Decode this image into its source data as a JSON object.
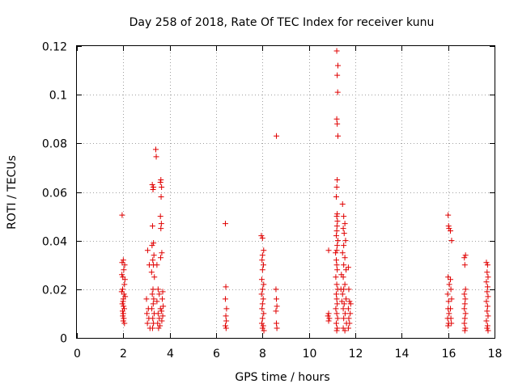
{
  "chart_data": {
    "type": "scatter",
    "title": "Day 258 of 2018, Rate Of TEC Index for receiver kunu",
    "xlabel": "GPS time / hours",
    "ylabel": "ROTI / TECUs",
    "xlim": [
      0,
      18
    ],
    "ylim": [
      0,
      0.12
    ],
    "xticks": [
      0,
      2,
      4,
      6,
      8,
      10,
      12,
      14,
      16,
      18
    ],
    "yticks": [
      0,
      0.02,
      0.04,
      0.06,
      0.08,
      0.1,
      0.12
    ],
    "xtick_labels": [
      "0",
      "2",
      "4",
      "6",
      "8",
      "10",
      "12",
      "14",
      "16",
      "18"
    ],
    "ytick_labels": [
      "0",
      "0.02",
      "0.04",
      "0.06",
      "0.08",
      "0.1",
      "0.12"
    ],
    "grid": true,
    "marker": "+",
    "color": "#e00000",
    "series": [
      {
        "name": "ROTI",
        "points": [
          [
            1.95,
            0.0505
          ],
          [
            2.0,
            0.032
          ],
          [
            2.02,
            0.028
          ],
          [
            1.98,
            0.025
          ],
          [
            2.05,
            0.022
          ],
          [
            1.97,
            0.02
          ],
          [
            2.03,
            0.018
          ],
          [
            2.0,
            0.016
          ],
          [
            1.96,
            0.014
          ],
          [
            2.04,
            0.012
          ],
          [
            2.0,
            0.01
          ],
          [
            1.98,
            0.009
          ],
          [
            2.02,
            0.008
          ],
          [
            2.0,
            0.007
          ],
          [
            1.95,
            0.031
          ],
          [
            2.06,
            0.03
          ],
          [
            1.94,
            0.026
          ],
          [
            2.07,
            0.024
          ],
          [
            1.93,
            0.019
          ],
          [
            2.08,
            0.017
          ],
          [
            1.99,
            0.015
          ],
          [
            2.01,
            0.013
          ],
          [
            1.97,
            0.011
          ],
          [
            2.05,
            0.006
          ],
          [
            3.05,
            0.036
          ],
          [
            3.12,
            0.03
          ],
          [
            3.0,
            0.016
          ],
          [
            3.08,
            0.012
          ],
          [
            3.02,
            0.01
          ],
          [
            3.1,
            0.008
          ],
          [
            3.04,
            0.006
          ],
          [
            3.15,
            0.004
          ],
          [
            3.25,
            0.063
          ],
          [
            3.3,
            0.062
          ],
          [
            3.28,
            0.061
          ],
          [
            3.26,
            0.046
          ],
          [
            3.3,
            0.039
          ],
          [
            3.24,
            0.038
          ],
          [
            3.32,
            0.034
          ],
          [
            3.27,
            0.032
          ],
          [
            3.3,
            0.03
          ],
          [
            3.22,
            0.027
          ],
          [
            3.34,
            0.025
          ],
          [
            3.28,
            0.02
          ],
          [
            3.25,
            0.018
          ],
          [
            3.31,
            0.016
          ],
          [
            3.29,
            0.014
          ],
          [
            3.23,
            0.012
          ],
          [
            3.33,
            0.01
          ],
          [
            3.27,
            0.008
          ],
          [
            3.3,
            0.006
          ],
          [
            3.26,
            0.004
          ],
          [
            3.4,
            0.0775
          ],
          [
            3.42,
            0.0745
          ],
          [
            3.45,
            0.03
          ],
          [
            3.5,
            0.02
          ],
          [
            3.55,
            0.018
          ],
          [
            3.45,
            0.015
          ],
          [
            3.6,
            0.012
          ],
          [
            3.5,
            0.01
          ],
          [
            3.55,
            0.008
          ],
          [
            3.48,
            0.006
          ],
          [
            3.58,
            0.005
          ],
          [
            3.52,
            0.004
          ],
          [
            3.62,
            0.065
          ],
          [
            3.6,
            0.064
          ],
          [
            3.65,
            0.062
          ],
          [
            3.63,
            0.058
          ],
          [
            3.6,
            0.05
          ],
          [
            3.64,
            0.047
          ],
          [
            3.62,
            0.045
          ],
          [
            3.66,
            0.035
          ],
          [
            3.61,
            0.033
          ],
          [
            3.7,
            0.019
          ],
          [
            3.68,
            0.016
          ],
          [
            3.72,
            0.013
          ],
          [
            3.65,
            0.011
          ],
          [
            3.7,
            0.009
          ],
          [
            3.66,
            0.007
          ],
          [
            6.4,
            0.047
          ],
          [
            6.42,
            0.021
          ],
          [
            6.4,
            0.016
          ],
          [
            6.45,
            0.012
          ],
          [
            6.42,
            0.009
          ],
          [
            6.44,
            0.007
          ],
          [
            6.4,
            0.005
          ],
          [
            6.43,
            0.004
          ],
          [
            7.95,
            0.042
          ],
          [
            8.0,
            0.041
          ],
          [
            8.05,
            0.036
          ],
          [
            8.0,
            0.034
          ],
          [
            7.98,
            0.032
          ],
          [
            8.04,
            0.03
          ],
          [
            8.0,
            0.028
          ],
          [
            7.97,
            0.024
          ],
          [
            8.05,
            0.022
          ],
          [
            8.0,
            0.02
          ],
          [
            7.96,
            0.018
          ],
          [
            8.03,
            0.016
          ],
          [
            8.0,
            0.014
          ],
          [
            7.98,
            0.012
          ],
          [
            8.05,
            0.01
          ],
          [
            8.0,
            0.008
          ],
          [
            7.97,
            0.006
          ],
          [
            8.03,
            0.005
          ],
          [
            8.0,
            0.004
          ],
          [
            8.06,
            0.003
          ],
          [
            8.6,
            0.083
          ],
          [
            8.58,
            0.02
          ],
          [
            8.6,
            0.016
          ],
          [
            8.62,
            0.013
          ],
          [
            8.58,
            0.011
          ],
          [
            8.6,
            0.006
          ],
          [
            8.62,
            0.004
          ],
          [
            10.85,
            0.036
          ],
          [
            10.85,
            0.01
          ],
          [
            10.82,
            0.009
          ],
          [
            10.88,
            0.008
          ],
          [
            10.85,
            0.007
          ],
          [
            11.2,
            0.118
          ],
          [
            11.25,
            0.112
          ],
          [
            11.22,
            0.108
          ],
          [
            11.24,
            0.101
          ],
          [
            11.2,
            0.09
          ],
          [
            11.22,
            0.088
          ],
          [
            11.25,
            0.083
          ],
          [
            11.22,
            0.065
          ],
          [
            11.2,
            0.062
          ],
          [
            11.18,
            0.058
          ],
          [
            11.22,
            0.051
          ],
          [
            11.2,
            0.05
          ],
          [
            11.23,
            0.048
          ],
          [
            11.21,
            0.046
          ],
          [
            11.2,
            0.044
          ],
          [
            11.18,
            0.042
          ],
          [
            11.25,
            0.04
          ],
          [
            11.22,
            0.038
          ],
          [
            11.2,
            0.036
          ],
          [
            11.15,
            0.035
          ],
          [
            11.18,
            0.032
          ],
          [
            11.2,
            0.03
          ],
          [
            11.22,
            0.028
          ],
          [
            11.16,
            0.025
          ],
          [
            11.2,
            0.022
          ],
          [
            11.24,
            0.02
          ],
          [
            11.18,
            0.018
          ],
          [
            11.2,
            0.016
          ],
          [
            11.22,
            0.014
          ],
          [
            11.16,
            0.012
          ],
          [
            11.2,
            0.01
          ],
          [
            11.24,
            0.008
          ],
          [
            11.18,
            0.006
          ],
          [
            11.22,
            0.004
          ],
          [
            11.2,
            0.003
          ],
          [
            11.45,
            0.055
          ],
          [
            11.5,
            0.05
          ],
          [
            11.55,
            0.047
          ],
          [
            11.48,
            0.045
          ],
          [
            11.52,
            0.043
          ],
          [
            11.58,
            0.04
          ],
          [
            11.5,
            0.038
          ],
          [
            11.45,
            0.035
          ],
          [
            11.55,
            0.033
          ],
          [
            11.5,
            0.03
          ],
          [
            11.6,
            0.028
          ],
          [
            11.48,
            0.025
          ],
          [
            11.55,
            0.022
          ],
          [
            11.5,
            0.02
          ],
          [
            11.45,
            0.018
          ],
          [
            11.6,
            0.016
          ],
          [
            11.52,
            0.014
          ],
          [
            11.48,
            0.012
          ],
          [
            11.56,
            0.01
          ],
          [
            11.5,
            0.008
          ],
          [
            11.62,
            0.006
          ],
          [
            11.48,
            0.004
          ],
          [
            11.55,
            0.003
          ],
          [
            11.4,
            0.026
          ],
          [
            11.38,
            0.02
          ],
          [
            11.42,
            0.015
          ],
          [
            11.7,
            0.029
          ],
          [
            11.72,
            0.02
          ],
          [
            11.75,
            0.015
          ],
          [
            11.7,
            0.012
          ],
          [
            11.78,
            0.01
          ],
          [
            11.72,
            0.008
          ],
          [
            11.75,
            0.006
          ],
          [
            11.7,
            0.004
          ],
          [
            11.8,
            0.014
          ],
          [
            16.0,
            0.0505
          ],
          [
            16.02,
            0.046
          ],
          [
            16.04,
            0.045
          ],
          [
            16.0,
            0.025
          ],
          [
            16.05,
            0.022
          ],
          [
            15.98,
            0.018
          ],
          [
            16.02,
            0.015
          ],
          [
            16.0,
            0.012
          ],
          [
            16.04,
            0.01
          ],
          [
            15.98,
            0.008
          ],
          [
            16.02,
            0.006
          ],
          [
            16.0,
            0.005
          ],
          [
            16.1,
            0.044
          ],
          [
            16.15,
            0.04
          ],
          [
            16.1,
            0.024
          ],
          [
            16.12,
            0.02
          ],
          [
            16.15,
            0.016
          ],
          [
            16.1,
            0.012
          ],
          [
            16.12,
            0.008
          ],
          [
            16.14,
            0.006
          ],
          [
            16.75,
            0.034
          ],
          [
            16.7,
            0.033
          ],
          [
            16.72,
            0.03
          ],
          [
            16.75,
            0.02
          ],
          [
            16.7,
            0.018
          ],
          [
            16.74,
            0.016
          ],
          [
            16.72,
            0.014
          ],
          [
            16.7,
            0.012
          ],
          [
            16.75,
            0.01
          ],
          [
            16.72,
            0.008
          ],
          [
            16.7,
            0.006
          ],
          [
            16.74,
            0.004
          ],
          [
            16.72,
            0.003
          ],
          [
            17.65,
            0.031
          ],
          [
            17.7,
            0.03
          ],
          [
            17.68,
            0.027
          ],
          [
            17.72,
            0.025
          ],
          [
            17.65,
            0.023
          ],
          [
            17.7,
            0.021
          ],
          [
            17.68,
            0.019
          ],
          [
            17.72,
            0.017
          ],
          [
            17.65,
            0.015
          ],
          [
            17.7,
            0.013
          ],
          [
            17.68,
            0.011
          ],
          [
            17.72,
            0.009
          ],
          [
            17.65,
            0.007
          ],
          [
            17.7,
            0.005
          ],
          [
            17.68,
            0.004
          ],
          [
            17.72,
            0.003
          ]
        ]
      }
    ]
  }
}
